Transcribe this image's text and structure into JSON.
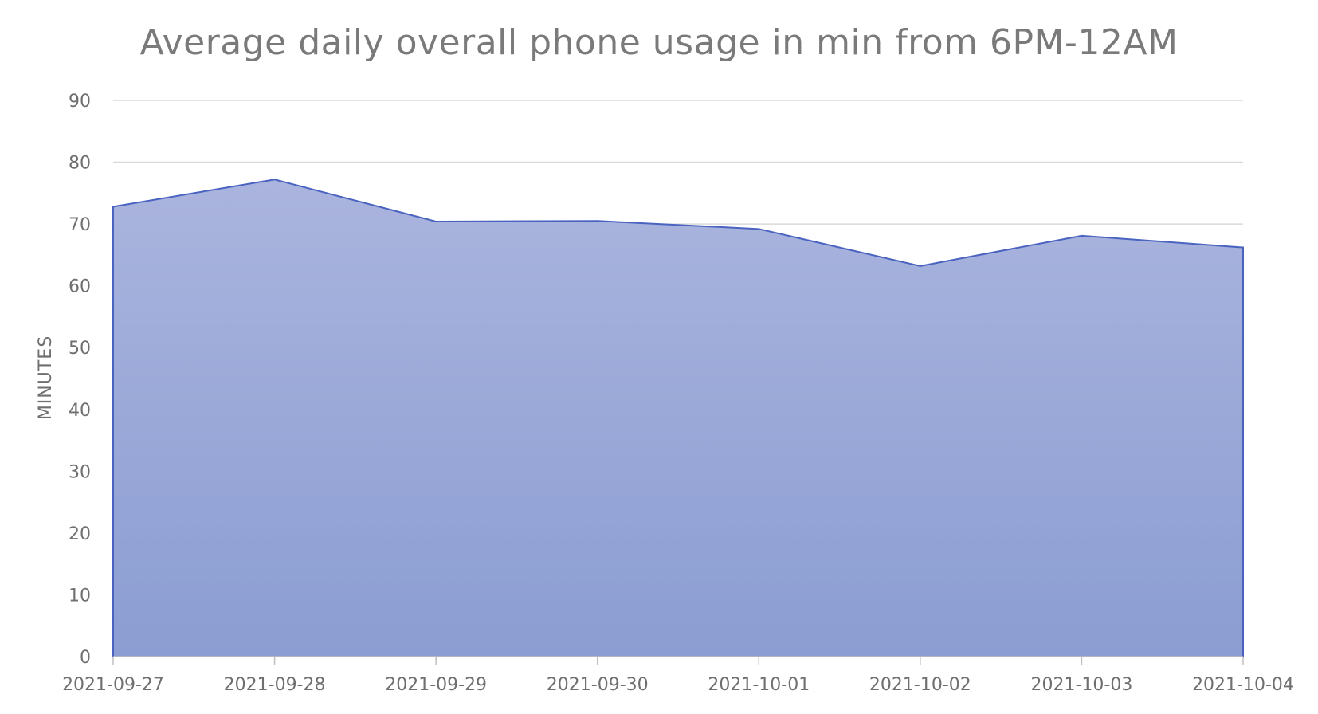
{
  "chart_data": {
    "type": "area",
    "title": "Average daily overall phone usage in min from 6PM-12AM",
    "xlabel": "",
    "ylabel": "MINUTES",
    "categories": [
      "2021-09-27",
      "2021-09-28",
      "2021-09-29",
      "2021-09-30",
      "2021-10-01",
      "2021-10-02",
      "2021-10-03",
      "2021-10-04"
    ],
    "series": [
      {
        "values": [
          72.8,
          77.2,
          70.4,
          70.5,
          69.2,
          63.2,
          68.1,
          66.2
        ]
      }
    ],
    "ylim": [
      0,
      90
    ],
    "yticks": [
      0,
      10,
      20,
      30,
      40,
      50,
      60,
      70,
      80,
      90
    ],
    "grid": true,
    "legend": "none",
    "colors": {
      "fill_top": "#aab4de",
      "fill_bottom": "#8b9dd2",
      "line": "#4a63c0",
      "gridline": "#d9d9d9",
      "axis": "#bfbfbf",
      "text": "#6f6f6f"
    }
  }
}
